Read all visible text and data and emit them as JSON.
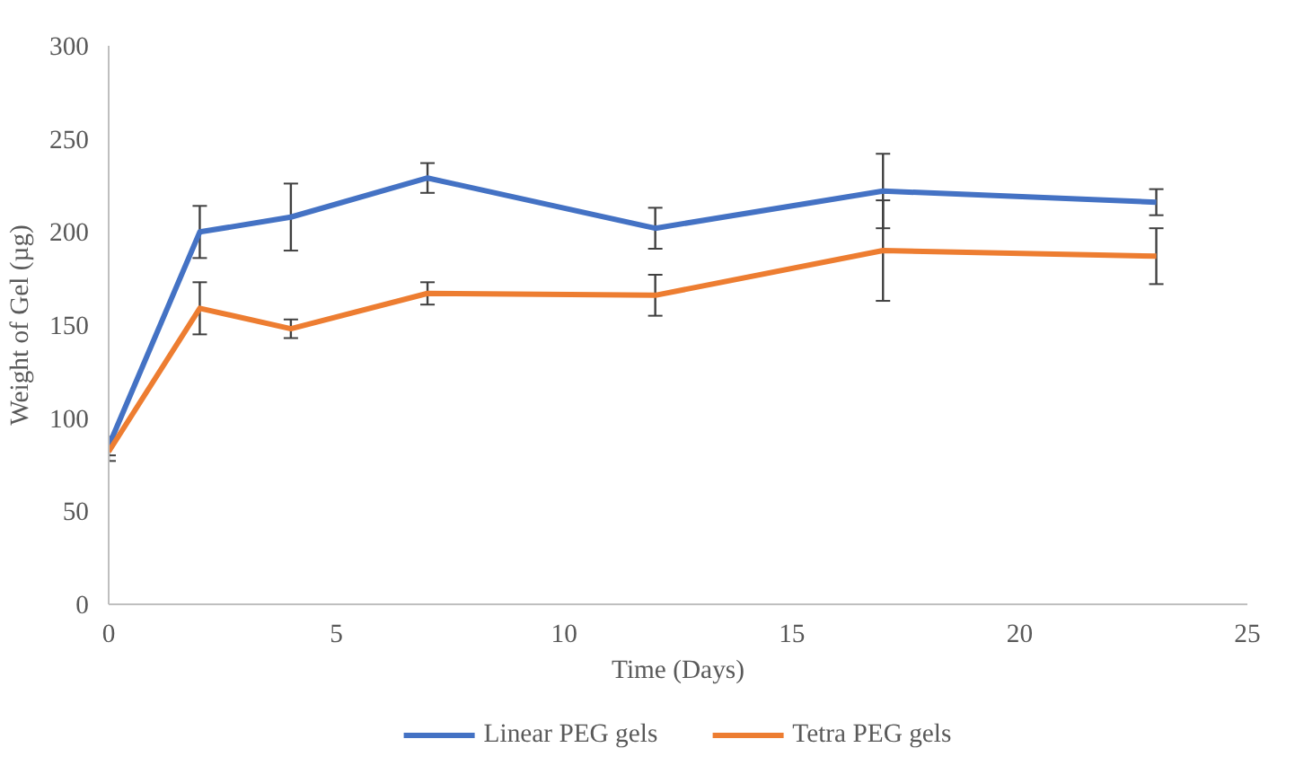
{
  "chart_data": {
    "type": "line",
    "xlabel": "Time (Days)",
    "ylabel": "Weight of Gel (µg)",
    "x": [
      0,
      2,
      4,
      7,
      12,
      17,
      23
    ],
    "series": [
      {
        "name": "Linear PEG gels",
        "color": "#4472c4",
        "values": [
          85,
          200,
          208,
          229,
          202,
          222,
          216
        ],
        "errors": [
          5,
          14,
          18,
          8,
          11,
          20,
          7
        ]
      },
      {
        "name": "Tetra PEG gels",
        "color": "#ed7d31",
        "values": [
          82,
          159,
          148,
          167,
          166,
          190,
          187
        ],
        "errors": [
          5,
          14,
          5,
          6,
          11,
          27,
          15
        ]
      }
    ],
    "xlim": [
      0,
      25
    ],
    "xticks": [
      0,
      5,
      10,
      15,
      20,
      25
    ],
    "ylim": [
      0,
      300
    ],
    "yticks": [
      0,
      50,
      100,
      150,
      200,
      250,
      300
    ],
    "grid": false,
    "legend": "bottom",
    "marker": "none",
    "line_style": "solid"
  }
}
